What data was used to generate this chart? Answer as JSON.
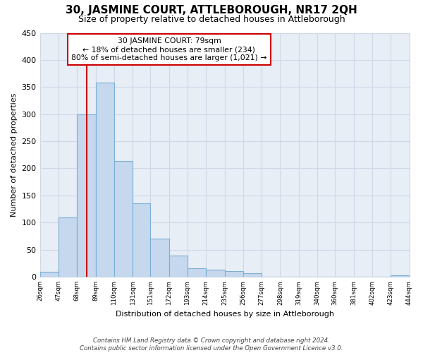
{
  "title": "30, JASMINE COURT, ATTLEBOROUGH, NR17 2QH",
  "subtitle": "Size of property relative to detached houses in Attleborough",
  "xlabel": "Distribution of detached houses by size in Attleborough",
  "ylabel": "Number of detached properties",
  "bins": [
    26,
    47,
    68,
    89,
    110,
    131,
    151,
    172,
    193,
    214,
    235,
    256,
    277,
    298,
    319,
    340,
    360,
    381,
    402,
    423,
    444
  ],
  "counts": [
    9,
    109,
    300,
    358,
    213,
    135,
    70,
    39,
    15,
    13,
    10,
    6,
    0,
    0,
    0,
    0,
    0,
    0,
    0,
    3
  ],
  "bar_color": "#c5d8ee",
  "bar_edge_color": "#7bafd4",
  "vline_x": 79,
  "vline_color": "#cc0000",
  "annotation_line1": "30 JASMINE COURT: 79sqm",
  "annotation_line2": "← 18% of detached houses are smaller (234)",
  "annotation_line3": "80% of semi-detached houses are larger (1,021) →",
  "annotation_box_edgecolor": "#cc0000",
  "annotation_box_facecolor": "#ffffff",
  "ylim": [
    0,
    450
  ],
  "yticks": [
    0,
    50,
    100,
    150,
    200,
    250,
    300,
    350,
    400,
    450
  ],
  "tick_labels": [
    "26sqm",
    "47sqm",
    "68sqm",
    "89sqm",
    "110sqm",
    "131sqm",
    "151sqm",
    "172sqm",
    "193sqm",
    "214sqm",
    "235sqm",
    "256sqm",
    "277sqm",
    "298sqm",
    "319sqm",
    "340sqm",
    "360sqm",
    "381sqm",
    "402sqm",
    "423sqm",
    "444sqm"
  ],
  "footer_line1": "Contains HM Land Registry data © Crown copyright and database right 2024.",
  "footer_line2": "Contains public sector information licensed under the Open Government Licence v3.0.",
  "bg_color": "#ffffff",
  "grid_color": "#d0d8e8",
  "plot_bg_color": "#e8eef6"
}
